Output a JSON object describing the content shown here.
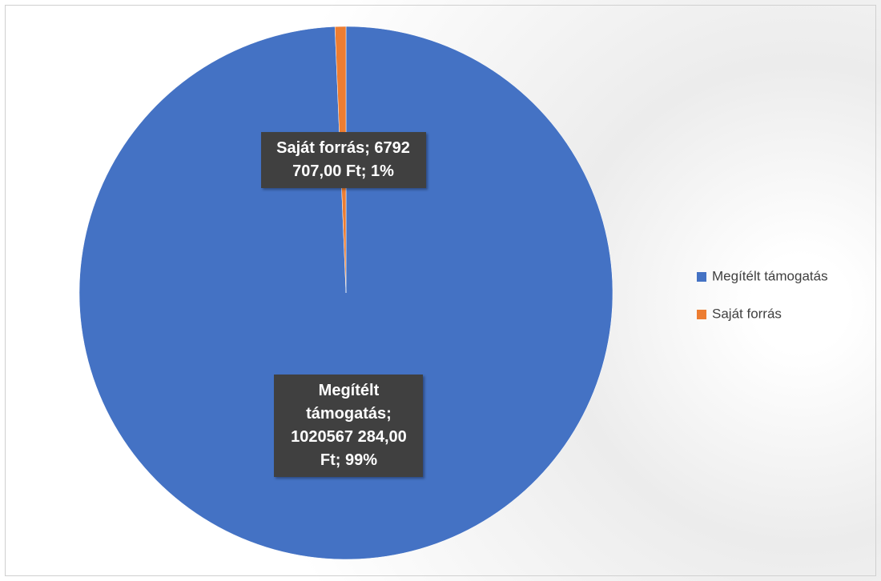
{
  "chart_data": {
    "type": "pie",
    "categories": [
      "Megítélt támogatás",
      "Saját forrás"
    ],
    "values": [
      1020567284,
      6792707
    ],
    "value_labels": [
      "Megítélt támogatás; 1020567 284,00 Ft; 99%",
      "Saját forrás; 6792 707,00 Ft; 1%"
    ],
    "colors": [
      "#4472c4",
      "#ed7d31"
    ],
    "legend": "right"
  }
}
